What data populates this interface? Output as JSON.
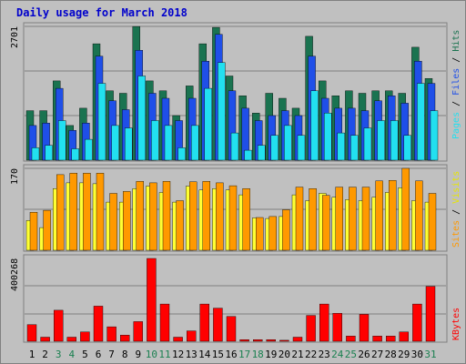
{
  "title": "Daily usage for March 2018",
  "panels": {
    "top": {
      "max_label": "2701",
      "legend": [
        "Pages",
        "Files",
        "Hits"
      ]
    },
    "mid": {
      "max_label": "170",
      "legend": [
        "Sites",
        "Visits"
      ]
    },
    "bot": {
      "max_label": "400268",
      "legend": [
        "KBytes"
      ]
    }
  },
  "colors": {
    "hits": "#1a7350",
    "files": "#1f4fe8",
    "pages": "#22e0f0",
    "visits": "#ffff33",
    "sites": "#ff9900",
    "kbytes": "#ff0000",
    "weekend_day": "#1a8050",
    "title": "#0000cc"
  },
  "chart_data": [
    {
      "type": "bar",
      "title": "Daily usage for March 2018",
      "categories": [
        "1",
        "2",
        "3",
        "4",
        "5",
        "6",
        "7",
        "8",
        "9",
        "10",
        "11",
        "12",
        "13",
        "14",
        "15",
        "16",
        "17",
        "18",
        "19",
        "20",
        "21",
        "22",
        "23",
        "24",
        "25",
        "26",
        "27",
        "28",
        "29",
        "30",
        "31"
      ],
      "weekend_days": [
        "3",
        "4",
        "10",
        "11",
        "17",
        "18",
        "24",
        "25",
        "31"
      ],
      "ymax": 2701,
      "series": [
        {
          "name": "Hits",
          "values": [
            1000,
            1000,
            1600,
            700,
            1050,
            2350,
            1400,
            1350,
            2700,
            1600,
            1400,
            900,
            1500,
            2350,
            2680,
            1700,
            1300,
            950,
            1350,
            1250,
            1050,
            2500,
            1600,
            1300,
            1400,
            1350,
            1400,
            1400,
            1350,
            2280,
            1650
          ]
        },
        {
          "name": "Files",
          "values": [
            700,
            750,
            1450,
            600,
            750,
            2100,
            1200,
            1020,
            2220,
            1350,
            1250,
            800,
            1250,
            2000,
            2540,
            1400,
            1050,
            800,
            900,
            1000,
            900,
            2100,
            1250,
            1050,
            1050,
            1000,
            1200,
            1300,
            1150,
            2000,
            1550
          ]
        },
        {
          "name": "Pages",
          "values": [
            250,
            300,
            800,
            230,
            420,
            1550,
            700,
            650,
            1700,
            800,
            700,
            250,
            700,
            1450,
            1970,
            550,
            200,
            300,
            500,
            700,
            500,
            1400,
            950,
            550,
            500,
            650,
            800,
            800,
            500,
            1550,
            1000
          ]
        }
      ]
    },
    {
      "type": "bar",
      "ymax": 170,
      "series": [
        {
          "name": "Visits",
          "values": [
            62,
            47,
            128,
            140,
            140,
            138,
            100,
            100,
            128,
            133,
            120,
            100,
            133,
            125,
            128,
            125,
            115,
            67,
            66,
            70,
            115,
            103,
            118,
            110,
            105,
            103,
            110,
            120,
            130,
            103,
            100
          ]
        },
        {
          "name": "Sites",
          "values": [
            79,
            83,
            157,
            160,
            160,
            160,
            118,
            122,
            143,
            140,
            143,
            103,
            142,
            143,
            140,
            134,
            128,
            68,
            70,
            84,
            131,
            128,
            114,
            131,
            131,
            131,
            144,
            145,
            170,
            144,
            118
          ]
        }
      ]
    },
    {
      "type": "bar",
      "ymax": 400268,
      "series": [
        {
          "name": "KBytes",
          "values": [
            80000,
            20000,
            150000,
            20000,
            45000,
            170000,
            70000,
            30000,
            95000,
            400268,
            180000,
            20000,
            50000,
            180000,
            160000,
            120000,
            8000,
            8000,
            8000,
            5000,
            20000,
            125000,
            180000,
            135000,
            25000,
            130000,
            25000,
            25000,
            45000,
            180000,
            265000
          ]
        }
      ]
    }
  ]
}
